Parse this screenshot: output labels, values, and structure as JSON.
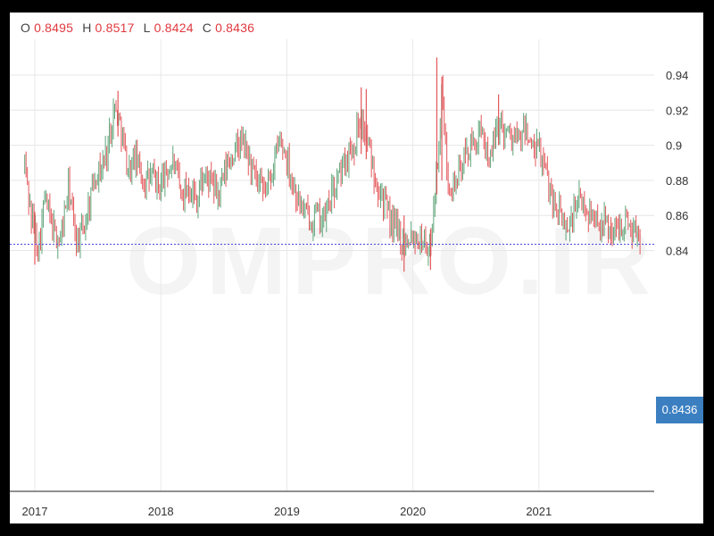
{
  "ohlc": {
    "o_label": "O",
    "o_value": "0.8495",
    "h_label": "H",
    "h_value": "0.8517",
    "l_label": "L",
    "l_value": "0.8424",
    "c_label": "C",
    "c_value": "0.8436"
  },
  "watermark": "OMPRO.IR",
  "current_price_label": "0.8436",
  "colors": {
    "up": "#5fa57a",
    "down": "#e3575b",
    "price_line": "#5a55e0",
    "price_tag": "#3c7fc1"
  },
  "chart_data": {
    "type": "ohlc",
    "title": "",
    "xlabel": "",
    "ylabel": "",
    "y_ticks": [
      0.84,
      0.86,
      0.88,
      0.9,
      0.92,
      0.94
    ],
    "y_tick_labels": [
      "0.84",
      "0.86",
      "0.88",
      "0.9",
      "0.92",
      "0.94"
    ],
    "ylim": [
      0.825,
      0.955
    ],
    "x_ticks": [
      2017,
      2018,
      2019,
      2020,
      2021
    ],
    "x_tick_labels": [
      "2017",
      "2018",
      "2019",
      "2020",
      "2021"
    ],
    "xlim": [
      2016.92,
      2021.88
    ],
    "current_price": 0.8436,
    "grid": true,
    "legend": "none",
    "series_path": [
      [
        2016.92,
        0.89
      ],
      [
        2016.97,
        0.86
      ],
      [
        2017.03,
        0.842
      ],
      [
        2017.08,
        0.87
      ],
      [
        2017.14,
        0.852
      ],
      [
        2017.2,
        0.845
      ],
      [
        2017.27,
        0.876
      ],
      [
        2017.33,
        0.845
      ],
      [
        2017.4,
        0.855
      ],
      [
        2017.47,
        0.882
      ],
      [
        2017.53,
        0.887
      ],
      [
        2017.58,
        0.9
      ],
      [
        2017.63,
        0.922
      ],
      [
        2017.68,
        0.912
      ],
      [
        2017.74,
        0.885
      ],
      [
        2017.8,
        0.893
      ],
      [
        2017.86,
        0.88
      ],
      [
        2017.93,
        0.882
      ],
      [
        2017.98,
        0.876
      ],
      [
        2018.04,
        0.884
      ],
      [
        2018.1,
        0.89
      ],
      [
        2018.16,
        0.872
      ],
      [
        2018.22,
        0.878
      ],
      [
        2018.28,
        0.869
      ],
      [
        2018.34,
        0.882
      ],
      [
        2018.4,
        0.878
      ],
      [
        2018.46,
        0.872
      ],
      [
        2018.52,
        0.887
      ],
      [
        2018.58,
        0.896
      ],
      [
        2018.64,
        0.902
      ],
      [
        2018.7,
        0.892
      ],
      [
        2018.76,
        0.878
      ],
      [
        2018.82,
        0.872
      ],
      [
        2018.88,
        0.885
      ],
      [
        2018.94,
        0.902
      ],
      [
        2018.99,
        0.896
      ],
      [
        2019.05,
        0.878
      ],
      [
        2019.11,
        0.865
      ],
      [
        2019.17,
        0.858
      ],
      [
        2019.23,
        0.86
      ],
      [
        2019.29,
        0.857
      ],
      [
        2019.35,
        0.87
      ],
      [
        2019.41,
        0.882
      ],
      [
        2019.47,
        0.893
      ],
      [
        2019.53,
        0.9
      ],
      [
        2019.58,
        0.916
      ],
      [
        2019.63,
        0.905
      ],
      [
        2019.69,
        0.885
      ],
      [
        2019.74,
        0.875
      ],
      [
        2019.8,
        0.86
      ],
      [
        2019.86,
        0.853
      ],
      [
        2019.92,
        0.845
      ],
      [
        2019.98,
        0.85
      ],
      [
        2020.04,
        0.848
      ],
      [
        2020.1,
        0.845
      ],
      [
        2020.13,
        0.838
      ],
      [
        2020.17,
        0.87
      ],
      [
        2020.2,
        0.895
      ],
      [
        2020.23,
        0.93
      ],
      [
        2020.27,
        0.885
      ],
      [
        2020.32,
        0.877
      ],
      [
        2020.38,
        0.886
      ],
      [
        2020.44,
        0.898
      ],
      [
        2020.5,
        0.902
      ],
      [
        2020.56,
        0.905
      ],
      [
        2020.62,
        0.89
      ],
      [
        2020.67,
        0.913
      ],
      [
        2020.72,
        0.91
      ],
      [
        2020.78,
        0.906
      ],
      [
        2020.84,
        0.902
      ],
      [
        2020.9,
        0.91
      ],
      [
        2020.95,
        0.895
      ],
      [
        2021.0,
        0.898
      ],
      [
        2021.06,
        0.882
      ],
      [
        2021.12,
        0.868
      ],
      [
        2021.18,
        0.858
      ],
      [
        2021.24,
        0.852
      ],
      [
        2021.3,
        0.868
      ],
      [
        2021.36,
        0.866
      ],
      [
        2021.42,
        0.86
      ],
      [
        2021.48,
        0.857
      ],
      [
        2021.54,
        0.855
      ],
      [
        2021.6,
        0.85
      ],
      [
        2021.66,
        0.856
      ],
      [
        2021.72,
        0.855
      ],
      [
        2021.78,
        0.85
      ],
      [
        2021.81,
        0.8436
      ]
    ],
    "spikes": [
      {
        "x": 2020.19,
        "high": 0.95,
        "low": 0.872
      },
      {
        "x": 2020.23,
        "high": 0.939,
        "low": 0.88
      },
      {
        "x": 2019.93,
        "high": 0.86,
        "low": 0.828
      },
      {
        "x": 2020.14,
        "high": 0.852,
        "low": 0.829
      },
      {
        "x": 2017.66,
        "high": 0.931,
        "low": 0.905
      },
      {
        "x": 2019.59,
        "high": 0.933,
        "low": 0.895
      },
      {
        "x": 2019.63,
        "high": 0.932,
        "low": 0.892
      },
      {
        "x": 2017.0,
        "high": 0.862,
        "low": 0.832
      },
      {
        "x": 2020.68,
        "high": 0.929,
        "low": 0.9
      }
    ]
  }
}
